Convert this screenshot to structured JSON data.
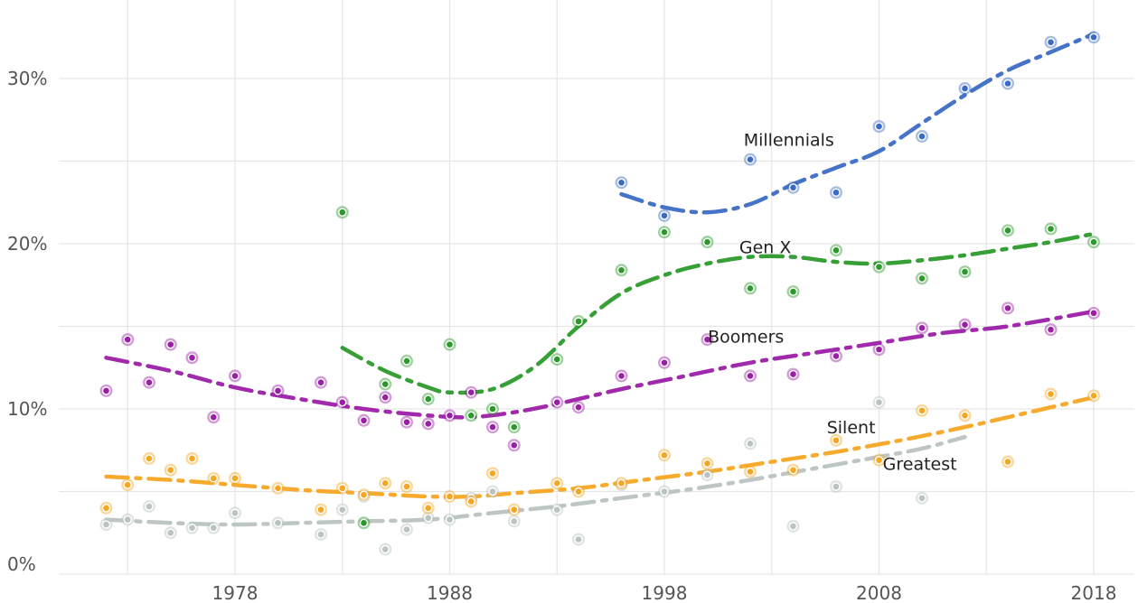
{
  "chart_data": {
    "type": "scatter",
    "title": "",
    "xlabel": "",
    "ylabel": "",
    "xlim": [
      1972,
      2019.5
    ],
    "ylim": [
      0,
      34
    ],
    "x_ticks": [
      1978,
      1988,
      1998,
      2008,
      2018
    ],
    "x_tick_labels": [
      "1978",
      "1988",
      "1998",
      "2008",
      "2018"
    ],
    "y_ticks": [
      0,
      10,
      20,
      30
    ],
    "y_tick_labels": [
      "0%",
      "10%",
      "20%",
      "30%"
    ],
    "grid": true,
    "legend": "direct labels on series",
    "series": [
      {
        "name": "Millennials",
        "color": "#3a6bc4",
        "points": [
          [
            1996,
            23.7
          ],
          [
            1998,
            21.7
          ],
          [
            2002,
            25.1
          ],
          [
            2004,
            23.4
          ],
          [
            2006,
            23.1
          ],
          [
            2008,
            27.1
          ],
          [
            2010,
            26.5
          ],
          [
            2012,
            29.4
          ],
          [
            2014,
            29.7
          ],
          [
            2016,
            32.2
          ],
          [
            2018,
            32.5
          ]
        ],
        "trend": [
          [
            1996,
            23.0
          ],
          [
            1998,
            22.2
          ],
          [
            2000,
            21.9
          ],
          [
            2002,
            22.4
          ],
          [
            2004,
            23.6
          ],
          [
            2006,
            24.6
          ],
          [
            2008,
            25.6
          ],
          [
            2010,
            27.3
          ],
          [
            2012,
            29.0
          ],
          [
            2014,
            30.5
          ],
          [
            2016,
            31.6
          ],
          [
            2018,
            32.7
          ]
        ]
      },
      {
        "name": "Gen X",
        "color": "#2b9a2b",
        "points": [
          [
            1983,
            21.9
          ],
          [
            1984,
            3.1
          ],
          [
            1985,
            11.5
          ],
          [
            1986,
            12.9
          ],
          [
            1987,
            10.6
          ],
          [
            1988,
            13.9
          ],
          [
            1989,
            9.6
          ],
          [
            1990,
            10.0
          ],
          [
            1991,
            8.9
          ],
          [
            1993,
            13.0
          ],
          [
            1994,
            15.3
          ],
          [
            1996,
            18.4
          ],
          [
            1998,
            20.7
          ],
          [
            2000,
            20.1
          ],
          [
            2002,
            17.3
          ],
          [
            2004,
            17.1
          ],
          [
            2006,
            19.6
          ],
          [
            2008,
            18.6
          ],
          [
            2010,
            17.9
          ],
          [
            2012,
            18.3
          ],
          [
            2014,
            20.8
          ],
          [
            2016,
            20.9
          ],
          [
            2018,
            20.1
          ]
        ],
        "trend": [
          [
            1983,
            13.7
          ],
          [
            1985,
            12.3
          ],
          [
            1987,
            11.3
          ],
          [
            1988,
            11.0
          ],
          [
            1990,
            11.2
          ],
          [
            1992,
            12.6
          ],
          [
            1994,
            15.0
          ],
          [
            1996,
            17.0
          ],
          [
            1998,
            18.1
          ],
          [
            2000,
            18.8
          ],
          [
            2002,
            19.2
          ],
          [
            2004,
            19.2
          ],
          [
            2006,
            18.9
          ],
          [
            2008,
            18.8
          ],
          [
            2010,
            19.0
          ],
          [
            2012,
            19.3
          ],
          [
            2014,
            19.7
          ],
          [
            2016,
            20.1
          ],
          [
            2018,
            20.6
          ]
        ]
      },
      {
        "name": "Boomers",
        "color": "#9b1fa6",
        "points": [
          [
            1972,
            11.1
          ],
          [
            1973,
            14.2
          ],
          [
            1974,
            11.6
          ],
          [
            1975,
            13.9
          ],
          [
            1976,
            13.1
          ],
          [
            1977,
            9.5
          ],
          [
            1978,
            12.0
          ],
          [
            1980,
            11.1
          ],
          [
            1982,
            11.6
          ],
          [
            1983,
            10.4
          ],
          [
            1984,
            9.3
          ],
          [
            1985,
            10.7
          ],
          [
            1986,
            9.2
          ],
          [
            1987,
            9.1
          ],
          [
            1988,
            9.6
          ],
          [
            1989,
            11.0
          ],
          [
            1990,
            8.9
          ],
          [
            1991,
            7.8
          ],
          [
            1993,
            10.4
          ],
          [
            1994,
            10.1
          ],
          [
            1996,
            12.0
          ],
          [
            1998,
            12.8
          ],
          [
            2000,
            14.2
          ],
          [
            2002,
            12.0
          ],
          [
            2004,
            12.1
          ],
          [
            2006,
            13.2
          ],
          [
            2008,
            13.6
          ],
          [
            2010,
            14.9
          ],
          [
            2012,
            15.1
          ],
          [
            2014,
            16.1
          ],
          [
            2016,
            14.8
          ],
          [
            2018,
            15.8
          ]
        ],
        "trend": [
          [
            1972,
            13.1
          ],
          [
            1975,
            12.3
          ],
          [
            1978,
            11.3
          ],
          [
            1981,
            10.6
          ],
          [
            1984,
            10.0
          ],
          [
            1987,
            9.6
          ],
          [
            1989,
            9.5
          ],
          [
            1991,
            9.8
          ],
          [
            1993,
            10.3
          ],
          [
            1996,
            11.2
          ],
          [
            1999,
            12.0
          ],
          [
            2002,
            12.8
          ],
          [
            2005,
            13.4
          ],
          [
            2008,
            14.0
          ],
          [
            2011,
            14.6
          ],
          [
            2014,
            15.0
          ],
          [
            2018,
            15.9
          ]
        ]
      },
      {
        "name": "Silent",
        "color": "#b9c3c2",
        "points": [
          [
            1972,
            3.0
          ],
          [
            1973,
            3.3
          ],
          [
            1974,
            4.1
          ],
          [
            1975,
            2.5
          ],
          [
            1976,
            2.8
          ],
          [
            1977,
            2.8
          ],
          [
            1978,
            3.7
          ],
          [
            1980,
            3.1
          ],
          [
            1982,
            2.4
          ],
          [
            1983,
            3.9
          ],
          [
            1984,
            4.7
          ],
          [
            1985,
            1.5
          ],
          [
            1986,
            2.7
          ],
          [
            1987,
            3.4
          ],
          [
            1988,
            3.3
          ],
          [
            1989,
            4.6
          ],
          [
            1990,
            5.0
          ],
          [
            1991,
            3.2
          ],
          [
            1993,
            3.9
          ],
          [
            1994,
            2.1
          ],
          [
            1996,
            5.4
          ],
          [
            1998,
            5.0
          ],
          [
            2000,
            6.0
          ],
          [
            2002,
            7.9
          ],
          [
            2004,
            2.9
          ],
          [
            2006,
            5.3
          ],
          [
            2008,
            10.4
          ],
          [
            2010,
            4.6
          ]
        ],
        "trend": [
          [
            1972,
            3.3
          ],
          [
            1975,
            3.1
          ],
          [
            1978,
            3.0
          ],
          [
            1981,
            3.1
          ],
          [
            1984,
            3.2
          ],
          [
            1987,
            3.3
          ],
          [
            1990,
            3.7
          ],
          [
            1993,
            4.1
          ],
          [
            1996,
            4.6
          ],
          [
            1999,
            5.1
          ],
          [
            2002,
            5.7
          ],
          [
            2005,
            6.4
          ],
          [
            2008,
            7.1
          ],
          [
            2010,
            7.6
          ],
          [
            2012,
            8.3
          ]
        ]
      },
      {
        "name": "Greatest",
        "color": "#f5a623",
        "points": [
          [
            1972,
            4.0
          ],
          [
            1973,
            5.4
          ],
          [
            1974,
            7.0
          ],
          [
            1975,
            6.3
          ],
          [
            1976,
            7.0
          ],
          [
            1977,
            5.8
          ],
          [
            1978,
            5.8
          ],
          [
            1980,
            5.2
          ],
          [
            1982,
            3.9
          ],
          [
            1983,
            5.2
          ],
          [
            1984,
            4.8
          ],
          [
            1985,
            5.5
          ],
          [
            1986,
            5.3
          ],
          [
            1987,
            4.0
          ],
          [
            1988,
            4.7
          ],
          [
            1989,
            4.4
          ],
          [
            1990,
            6.1
          ],
          [
            1991,
            3.9
          ],
          [
            1993,
            5.5
          ],
          [
            1994,
            5.0
          ],
          [
            1996,
            5.5
          ],
          [
            1998,
            7.2
          ],
          [
            2000,
            6.7
          ],
          [
            2002,
            6.2
          ],
          [
            2004,
            6.3
          ],
          [
            2006,
            8.1
          ],
          [
            2008,
            6.9
          ],
          [
            2010,
            9.9
          ],
          [
            2012,
            9.6
          ],
          [
            2014,
            6.8
          ],
          [
            2016,
            10.9
          ],
          [
            2018,
            10.8
          ]
        ],
        "trend": [
          [
            1972,
            5.9
          ],
          [
            1975,
            5.7
          ],
          [
            1978,
            5.4
          ],
          [
            1981,
            5.1
          ],
          [
            1984,
            4.9
          ],
          [
            1987,
            4.7
          ],
          [
            1989,
            4.7
          ],
          [
            1991,
            4.9
          ],
          [
            1994,
            5.2
          ],
          [
            1997,
            5.7
          ],
          [
            2000,
            6.2
          ],
          [
            2003,
            6.8
          ],
          [
            2006,
            7.4
          ],
          [
            2009,
            8.1
          ],
          [
            2012,
            8.9
          ],
          [
            2015,
            9.8
          ],
          [
            2018,
            10.7
          ]
        ]
      }
    ],
    "annotations": [
      {
        "text": "Millennials",
        "series": "Millennials",
        "x": 2003.8,
        "y": 26.3
      },
      {
        "text": "Gen X",
        "series": "Gen X",
        "x": 2002.7,
        "y": 19.8
      },
      {
        "text": "Boomers",
        "series": "Boomers",
        "x": 2001.8,
        "y": 14.4
      },
      {
        "text": "Silent",
        "series": "Silent",
        "x": 2006.7,
        "y": 8.9
      },
      {
        "text": "Greatest",
        "series": "Greatest",
        "x": 2009.9,
        "y": 6.7
      }
    ]
  }
}
